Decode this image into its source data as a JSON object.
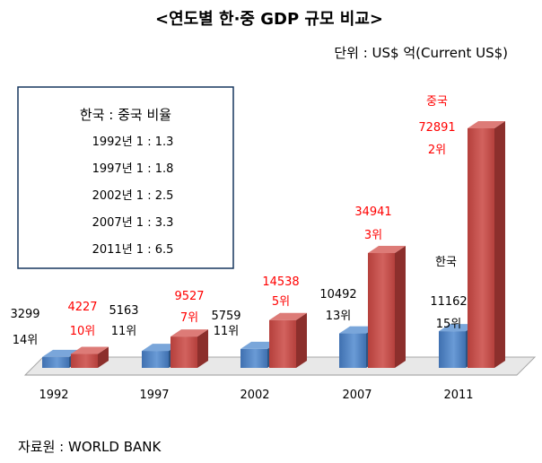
{
  "chart_data": {
    "type": "bar",
    "title": "<연도별 한·중 GDP 규모 비교>",
    "unit_note": "단위 : US$ 억(Current US$)",
    "source": "자료원 : WORLD BANK",
    "categories": [
      "1992",
      "1997",
      "2002",
      "2007",
      "2011"
    ],
    "series": [
      {
        "name": "한국",
        "values": [
          3299,
          5163,
          5759,
          10492,
          11162
        ],
        "ranks": [
          "14위",
          "11위",
          "11위",
          "13위",
          "15위"
        ]
      },
      {
        "name": "중국",
        "values": [
          4227,
          9527,
          14538,
          34941,
          72891
        ],
        "ranks": [
          "10위",
          "7위",
          "5위",
          "3위",
          "2위"
        ]
      }
    ],
    "ratio_box": {
      "title": "한국 : 중국 비율",
      "rows": [
        "1992년 1 : 1.3",
        "1997년 1 : 1.8",
        "2002년 1 : 2.5",
        "2007년 1 : 3.3",
        "2011년 1 : 6.5"
      ]
    },
    "ylim": [
      0,
      72891
    ],
    "colors": {
      "korea": "#4f81bd",
      "china": "#c0504d",
      "china_text": "#ff0000"
    }
  }
}
